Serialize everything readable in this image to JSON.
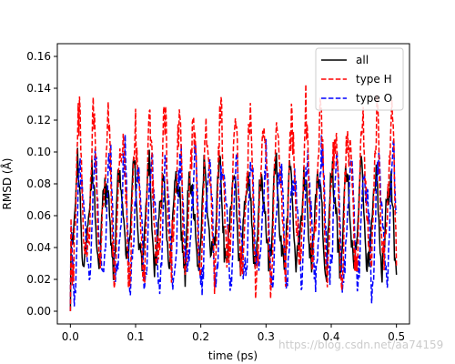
{
  "chart_data": {
    "type": "line",
    "xlabel": "time (ps)",
    "ylabel": "RMSD (Å)",
    "xlim": [
      -0.02,
      0.52
    ],
    "ylim": [
      -0.008,
      0.168
    ],
    "x_ticks": [
      "0.0",
      "0.1",
      "0.2",
      "0.3",
      "0.4",
      "0.5"
    ],
    "x_tick_values": [
      0.0,
      0.1,
      0.2,
      0.3,
      0.4,
      0.5
    ],
    "y_ticks": [
      "0.00",
      "0.02",
      "0.04",
      "0.06",
      "0.08",
      "0.10",
      "0.12",
      "0.14",
      "0.16"
    ],
    "y_tick_values": [
      0.0,
      0.02,
      0.04,
      0.06,
      0.08,
      0.1,
      0.12,
      0.14,
      0.16
    ],
    "legend_position": "top-right",
    "x_range": [
      0.0,
      0.5
    ],
    "n_points": 501,
    "series": [
      {
        "name": "all",
        "color": "#000000",
        "dash": "solid",
        "shape": "rapid oscillation between ~0.0 and ~0.13, mostly 0.02–0.10",
        "start_value": 0.0
      },
      {
        "name": "type H",
        "color": "#ff0000",
        "dash": "dashed",
        "shape": "rapid oscillation between ~0.01 and ~0.16, peaks near 0.155 at x≈0.07 and x≈0.135",
        "start_value": 0.0
      },
      {
        "name": "type O",
        "color": "#0000ff",
        "dash": "dashed",
        "shape": "rapid oscillation between ~0.005 and ~0.125",
        "start_value": 0.0
      }
    ]
  },
  "watermark": "https://blog.csdn.net/aa74159"
}
